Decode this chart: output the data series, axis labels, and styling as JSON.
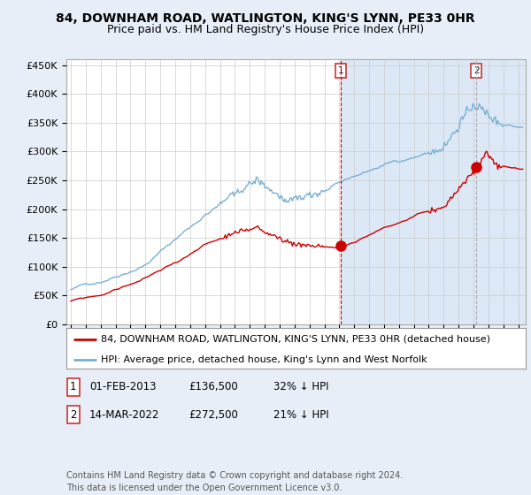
{
  "title": "84, DOWNHAM ROAD, WATLINGTON, KING'S LYNN, PE33 0HR",
  "subtitle": "Price paid vs. HM Land Registry's House Price Index (HPI)",
  "ylabel_ticks": [
    "£0",
    "£50K",
    "£100K",
    "£150K",
    "£200K",
    "£250K",
    "£300K",
    "£350K",
    "£400K",
    "£450K"
  ],
  "ytick_values": [
    0,
    50000,
    100000,
    150000,
    200000,
    250000,
    300000,
    350000,
    400000,
    450000
  ],
  "ylim": [
    0,
    460000
  ],
  "xlim_start": 1994.7,
  "xlim_end": 2025.5,
  "legend_entries": [
    "84, DOWNHAM ROAD, WATLINGTON, KING'S LYNN, PE33 0HR (detached house)",
    "HPI: Average price, detached house, King's Lynn and West Norfolk"
  ],
  "legend_colors": [
    "#cc0000",
    "#7ab0d4"
  ],
  "annotation1": {
    "label": "1",
    "x": 2013.08,
    "y_dot": 136500,
    "date": "01-FEB-2013",
    "price": "£136,500",
    "pct": "32% ↓ HPI"
  },
  "annotation2": {
    "label": "2",
    "x": 2022.2,
    "y_dot": 272500,
    "date": "14-MAR-2022",
    "price": "£272,500",
    "pct": "21% ↓ HPI"
  },
  "footer": "Contains HM Land Registry data © Crown copyright and database right 2024.\nThis data is licensed under the Open Government Licence v3.0.",
  "bg_color": "#e8eef8",
  "plot_bg_color": "#ffffff",
  "shaded_bg_color": "#dce8f5",
  "grid_color": "#cccccc",
  "vline1_color": "#cc0000",
  "vline2_color": "#aaaaaa",
  "title_fontsize": 10,
  "subtitle_fontsize": 9,
  "axis_fontsize": 8,
  "legend_fontsize": 8,
  "footer_fontsize": 7
}
